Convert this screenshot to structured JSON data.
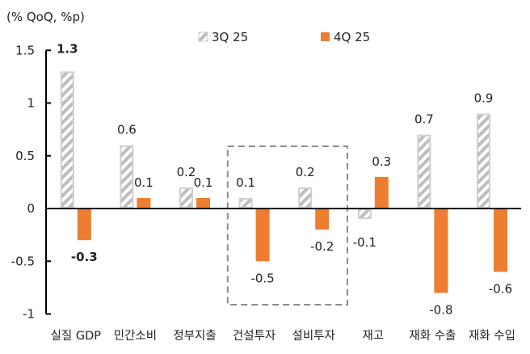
{
  "chart_data": {
    "type": "bar",
    "unit_label": "(% QoQ, %p)",
    "categories": [
      "실질 GDP",
      "민간소비",
      "정부지출",
      "건설투자",
      "설비투자",
      "재고",
      "재화 수출",
      "재화 수입"
    ],
    "series": [
      {
        "name": "3Q 25",
        "values": [
          1.3,
          0.6,
          0.2,
          0.1,
          0.2,
          -0.1,
          0.7,
          0.9
        ],
        "color": "#C8C8C8",
        "pattern": "diagonal-hatch"
      },
      {
        "name": "4Q 25",
        "values": [
          -0.3,
          0.1,
          0.1,
          -0.5,
          -0.2,
          0.3,
          -0.8,
          -0.6
        ],
        "color": "#ED7D31"
      }
    ],
    "yticks": [
      "1.5",
      "1",
      "0.5",
      "0",
      "-0.5",
      "-1"
    ],
    "ylim": [
      -1,
      1.5
    ],
    "legend_position": "top",
    "highlight_box_categories": [
      "건설투자",
      "설비투자"
    ],
    "grid": false
  }
}
